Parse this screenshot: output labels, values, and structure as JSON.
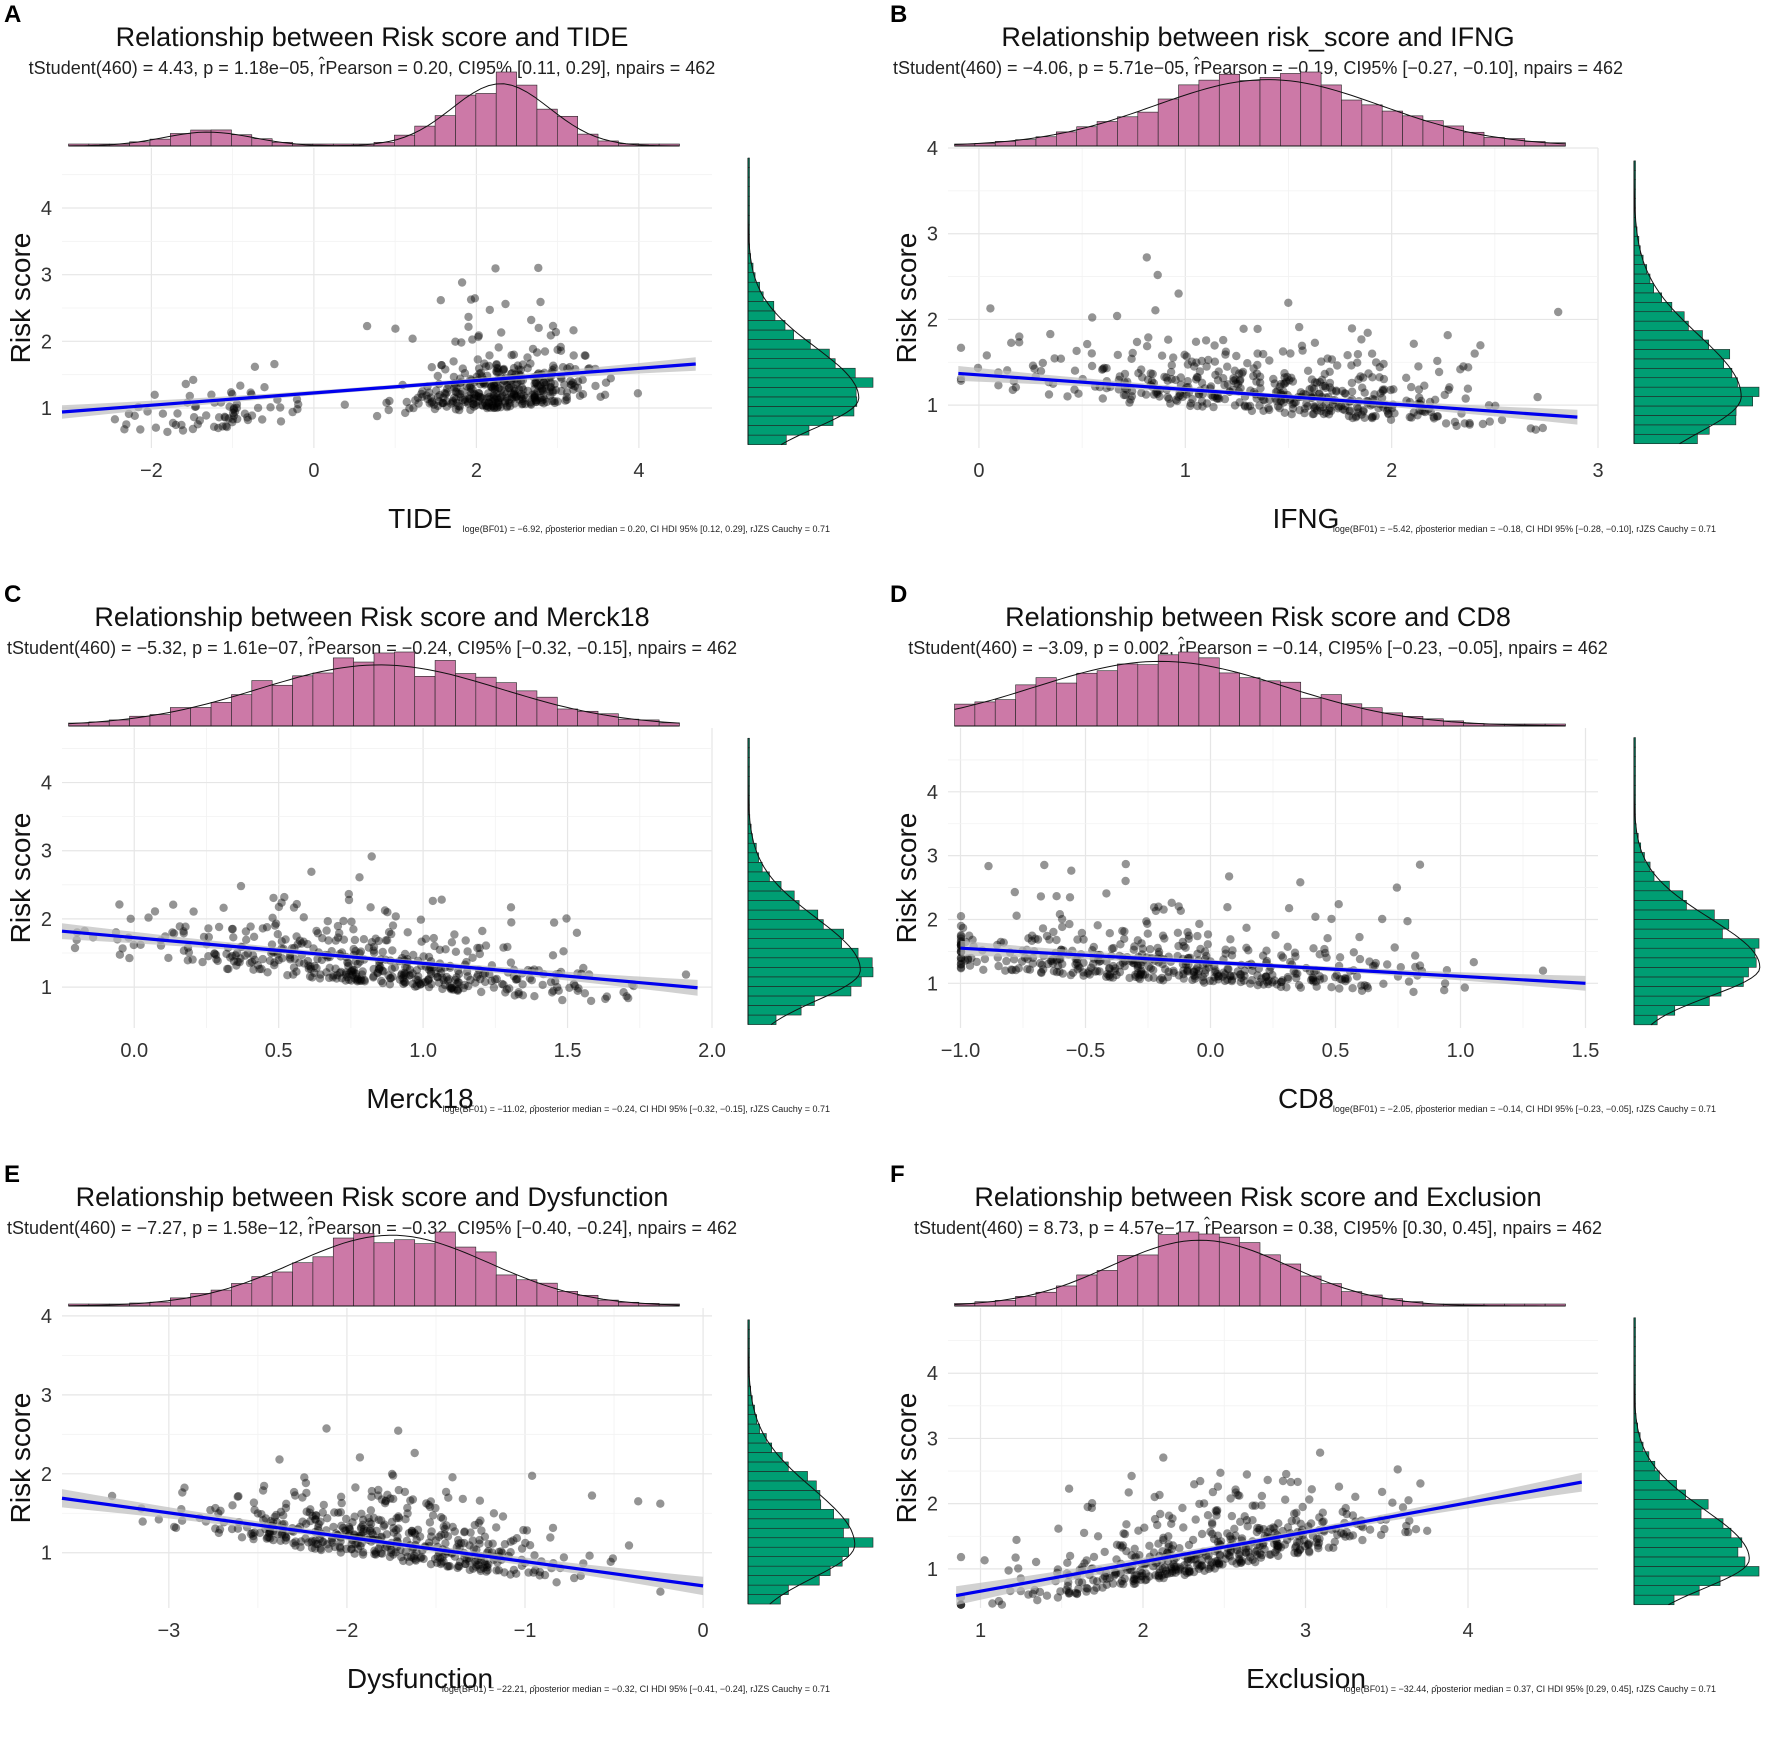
{
  "chart_data": [
    {
      "panel": "A",
      "type": "scatter",
      "title": "Relationship between Risk score and TIDE",
      "subtitle": "tStudent(460) = 4.43, p = 1.18e−05, r̂Pearson = 0.20, CI95% [0.11, 0.29], npairs = 462",
      "bf_text": "loge(BF01) = −6.92, ρ̂posterior median = 0.20, CI HDI 95% [0.12, 0.29], rJZS Cauchy = 0.71",
      "xlabel": "TIDE",
      "ylabel": "Risk score",
      "xlim": [
        -3.1,
        4.9
      ],
      "ylim": [
        0.4,
        4.9
      ],
      "xticks": [
        -2,
        0,
        2,
        4
      ],
      "xtick_labels": [
        "−2",
        "0",
        "2",
        "4"
      ],
      "yticks": [
        1,
        2,
        3,
        4
      ],
      "ytick_labels": [
        "1",
        "2",
        "3",
        "4"
      ],
      "fit": {
        "x0": -3.1,
        "y0": 0.94,
        "x1": 4.7,
        "y1": 1.66,
        "band": 0.07
      },
      "distribution": {
        "type": "bimodal",
        "m1": -1.3,
        "s1": 0.55,
        "w1": 0.17,
        "m2": 2.3,
        "s2": 0.6,
        "w2": 0.83
      },
      "y_distribution": {
        "mean": 1.15,
        "sd": 0.45
      },
      "n_points": 462,
      "seed": 11
    },
    {
      "panel": "B",
      "type": "scatter",
      "title": "Relationship between risk_score and IFNG",
      "subtitle": "tStudent(460) = −4.06, p = 5.71e−05, r̂Pearson = −0.19, CI95% [−0.27, −0.10], npairs = 462",
      "bf_text": "loge(BF01) = −5.42, ρ̂posterior median = −0.18, CI HDI 95% [−0.28, −0.10], rJZS Cauchy = 0.71",
      "xlabel": "IFNG",
      "ylabel": "Risk score",
      "xlim": [
        -0.15,
        3.0
      ],
      "ylim": [
        0.5,
        4.0
      ],
      "xticks": [
        0,
        1,
        2,
        3
      ],
      "xtick_labels": [
        "0",
        "1",
        "2",
        "3"
      ],
      "yticks": [
        1,
        2,
        3,
        4
      ],
      "ytick_labels": [
        "1",
        "2",
        "3",
        "4"
      ],
      "fit": {
        "x0": -0.1,
        "y0": 1.37,
        "x1": 2.9,
        "y1": 0.86,
        "band": 0.06
      },
      "distribution": {
        "type": "normal",
        "m1": 1.4,
        "s1": 0.55
      },
      "y_distribution": {
        "mean": 1.1,
        "sd": 0.42
      },
      "n_points": 462,
      "seed": 23
    },
    {
      "panel": "C",
      "type": "scatter",
      "title": "Relationship between Risk score and Merck18",
      "subtitle": "tStudent(460) = −5.32, p = 1.61e−07, r̂Pearson = −0.24, CI95% [−0.32, −0.15], npairs = 462",
      "bf_text": "loge(BF01) = −11.02, ρ̂posterior median = −0.24, CI HDI 95% [−0.32, −0.15], rJZS Cauchy = 0.71",
      "xlabel": "Merck18",
      "ylabel": "Risk score",
      "xlim": [
        -0.25,
        2.0
      ],
      "ylim": [
        0.4,
        4.8
      ],
      "xticks": [
        0.0,
        0.5,
        1.0,
        1.5,
        2.0
      ],
      "xtick_labels": [
        "0.0",
        "0.5",
        "1.0",
        "1.5",
        "2.0"
      ],
      "yticks": [
        1,
        2,
        3,
        4
      ],
      "ytick_labels": [
        "1",
        "2",
        "3",
        "4"
      ],
      "fit": {
        "x0": -0.25,
        "y0": 1.82,
        "x1": 1.95,
        "y1": 0.99,
        "band": 0.08
      },
      "distribution": {
        "type": "normal",
        "m1": 0.85,
        "s1": 0.42
      },
      "y_distribution": {
        "mean": 1.25,
        "sd": 0.45
      },
      "n_points": 462,
      "seed": 37
    },
    {
      "panel": "D",
      "type": "scatter",
      "title": "Relationship between Risk score and CD8",
      "subtitle": "tStudent(460) = −3.09, p = 0.002, r̂Pearson = −0.14, CI95% [−0.23, −0.05], npairs = 462",
      "bf_text": "loge(BF01) = −2.05, ρ̂posterior median = −0.14, CI HDI 95% [−0.23, −0.05], rJZS Cauchy = 0.71",
      "xlabel": "CD8",
      "ylabel": "Risk score",
      "xlim": [
        -1.05,
        1.55
      ],
      "ylim": [
        0.3,
        5.0
      ],
      "xticks": [
        -1.0,
        -0.5,
        0.0,
        0.5,
        1.0,
        1.5
      ],
      "xtick_labels": [
        "−1.0",
        "−0.5",
        "0.0",
        "0.5",
        "1.0",
        "1.5"
      ],
      "yticks": [
        1,
        2,
        3,
        4
      ],
      "ytick_labels": [
        "1",
        "2",
        "3",
        "4"
      ],
      "fit": {
        "x0": -1.0,
        "y0": 1.55,
        "x1": 1.5,
        "y1": 1.0,
        "band": 0.08
      },
      "distribution": {
        "type": "normal",
        "m1": -0.2,
        "s1": 0.5
      },
      "y_distribution": {
        "mean": 1.25,
        "sd": 0.45
      },
      "n_points": 462,
      "seed": 41
    },
    {
      "panel": "E",
      "type": "scatter",
      "title": "Relationship between Risk score and Dysfunction",
      "subtitle": "tStudent(460) = −7.27, p = 1.58e−12, r̂Pearson = −0.32, CI95% [−0.40, −0.24], npairs = 462",
      "bf_text": "loge(BF01) = −22.21, ρ̂posterior median = −0.32, CI HDI 95% [−0.41, −0.24], rJZS Cauchy = 0.71",
      "xlabel": "Dysfunction",
      "ylabel": "Risk score",
      "xlim": [
        -3.6,
        0.05
      ],
      "ylim": [
        0.3,
        4.1
      ],
      "xticks": [
        -3,
        -2,
        -1,
        0
      ],
      "xtick_labels": [
        "−3",
        "−2",
        "−1",
        "0"
      ],
      "yticks": [
        1,
        2,
        3,
        4
      ],
      "ytick_labels": [
        "1",
        "2",
        "3",
        "4"
      ],
      "fit": {
        "x0": -3.6,
        "y0": 1.69,
        "x1": 0.0,
        "y1": 0.58,
        "band": 0.08
      },
      "distribution": {
        "type": "normal",
        "m1": -1.75,
        "s1": 0.55
      },
      "y_distribution": {
        "mean": 1.1,
        "sd": 0.42
      },
      "n_points": 462,
      "seed": 53
    },
    {
      "panel": "F",
      "type": "scatter",
      "title": "Relationship between Risk score and Exclusion",
      "subtitle": "tStudent(460) = 8.73, p = 4.57e−17, r̂Pearson = 0.38, CI95% [0.30, 0.45], npairs = 462",
      "bf_text": "loge(BF01) = −32.44, ρ̂posterior median = 0.37, CI HDI 95% [0.29, 0.45], rJZS Cauchy = 0.71",
      "xlabel": "Exclusion",
      "ylabel": "Risk score",
      "xlim": [
        0.8,
        4.8
      ],
      "ylim": [
        0.4,
        5.0
      ],
      "xticks": [
        1,
        2,
        3,
        4
      ],
      "xtick_labels": [
        "1",
        "2",
        "3",
        "4"
      ],
      "yticks": [
        1,
        2,
        3,
        4
      ],
      "ytick_labels": [
        "1",
        "2",
        "3",
        "4"
      ],
      "fit": {
        "x0": 0.85,
        "y0": 0.59,
        "x1": 4.7,
        "y1": 2.33,
        "band": 0.1
      },
      "distribution": {
        "type": "normal",
        "m1": 2.35,
        "s1": 0.55
      },
      "y_distribution": {
        "mean": 1.15,
        "sd": 0.45
      },
      "n_points": 462,
      "seed": 67
    }
  ],
  "colors": {
    "top_hist": "#CC79A7",
    "side_hist": "#009E73",
    "fit_line": "#0000EE",
    "band": "#BEBEBE",
    "points": "#000000",
    "grid": "#E6E6E6"
  }
}
